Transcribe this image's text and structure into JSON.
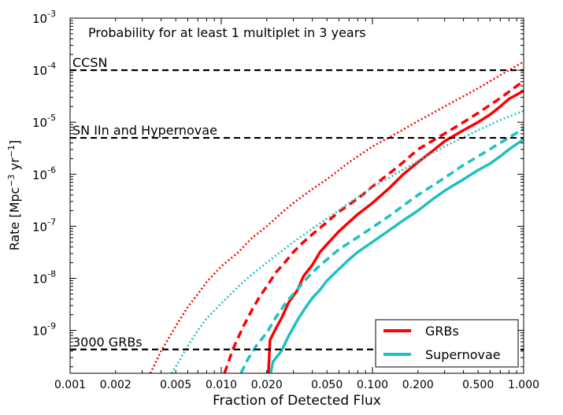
{
  "chart_data": {
    "type": "line",
    "title": "Probability for at least 1 multiplet in 3 years",
    "xlabel": "Fraction of Detected Flux",
    "ylabel": {
      "main": "Rate [Mpc",
      "sup1": "−3",
      "mid": " yr",
      "sup2": "−1",
      "end": "]"
    },
    "x_scale": "log",
    "y_scale": "log",
    "xlim": [
      0.001,
      1.0
    ],
    "ylim": [
      1.5e-10,
      0.001
    ],
    "x_ticks": [
      {
        "v": 0.001,
        "label": "0.001"
      },
      {
        "v": 0.002,
        "label": "0.002"
      },
      {
        "v": 0.005,
        "label": "0.005"
      },
      {
        "v": 0.01,
        "label": "0.010"
      },
      {
        "v": 0.02,
        "label": "0.020"
      },
      {
        "v": 0.05,
        "label": "0.050"
      },
      {
        "v": 0.1,
        "label": "0.100"
      },
      {
        "v": 0.2,
        "label": "0.200"
      },
      {
        "v": 0.5,
        "label": "0.500"
      },
      {
        "v": 1.0,
        "label": "1.000"
      }
    ],
    "y_ticks": [
      {
        "v": 0.001,
        "base": "10",
        "exp": "-3"
      },
      {
        "v": 0.0001,
        "base": "10",
        "exp": "-4"
      },
      {
        "v": 1e-05,
        "base": "10",
        "exp": "-5"
      },
      {
        "v": 1e-06,
        "base": "10",
        "exp": "-6"
      },
      {
        "v": 1e-07,
        "base": "10",
        "exp": "-7"
      },
      {
        "v": 1e-08,
        "base": "10",
        "exp": "-8"
      },
      {
        "v": 1e-09,
        "base": "10",
        "exp": "-9"
      }
    ],
    "reference_lines": [
      {
        "label": "CCSN",
        "y": 0.0001
      },
      {
        "label": "SN IIn and Hypernovae",
        "y": 5e-06
      },
      {
        "label": "3000 GRBs",
        "y": 4.3e-10
      }
    ],
    "legend": {
      "placement": "lower-right",
      "entries": [
        {
          "label": "GRBs",
          "color": "#ff0000"
        },
        {
          "label": "Supernovae",
          "color": "#20c0c0"
        }
      ]
    },
    "series": [
      {
        "group": "GRBs",
        "style": "solid",
        "color": "#ff0000",
        "points": [
          [
            0.0205,
            1.5e-10
          ],
          [
            0.021,
            6.5e-10
          ],
          [
            0.023,
            1.1e-09
          ],
          [
            0.025,
            1.7e-09
          ],
          [
            0.028,
            3.5e-09
          ],
          [
            0.032,
            6e-09
          ],
          [
            0.035,
            1.1e-08
          ],
          [
            0.04,
            1.8e-08
          ],
          [
            0.045,
            3.2e-08
          ],
          [
            0.05,
            4.5e-08
          ],
          [
            0.06,
            8e-08
          ],
          [
            0.07,
            1.2e-07
          ],
          [
            0.08,
            1.7e-07
          ],
          [
            0.1,
            2.8e-07
          ],
          [
            0.13,
            5.5e-07
          ],
          [
            0.16,
            1e-06
          ],
          [
            0.2,
            1.7e-06
          ],
          [
            0.25,
            2.8e-06
          ],
          [
            0.3,
            4.3e-06
          ],
          [
            0.4,
            7e-06
          ],
          [
            0.5,
            1e-05
          ],
          [
            0.6,
            1.4e-05
          ],
          [
            0.7,
            2e-05
          ],
          [
            0.8,
            2.8e-05
          ],
          [
            1.0,
            4e-05
          ]
        ]
      },
      {
        "group": "GRBs",
        "style": "dashed",
        "color": "#ff0000",
        "points": [
          [
            0.0105,
            1.5e-10
          ],
          [
            0.012,
            4.5e-10
          ],
          [
            0.014,
            1.2e-09
          ],
          [
            0.016,
            2.5e-09
          ],
          [
            0.018,
            4.5e-09
          ],
          [
            0.02,
            7e-09
          ],
          [
            0.023,
            1.3e-08
          ],
          [
            0.027,
            2.2e-08
          ],
          [
            0.03,
            3.2e-08
          ],
          [
            0.035,
            5e-08
          ],
          [
            0.04,
            7e-08
          ],
          [
            0.05,
            1.2e-07
          ],
          [
            0.06,
            1.9e-07
          ],
          [
            0.08,
            3.4e-07
          ],
          [
            0.1,
            5.8e-07
          ],
          [
            0.13,
            1.05e-06
          ],
          [
            0.16,
            1.7e-06
          ],
          [
            0.2,
            3e-06
          ],
          [
            0.3,
            6e-06
          ],
          [
            0.4,
            1e-05
          ],
          [
            0.5,
            1.5e-05
          ],
          [
            0.7,
            2.9e-05
          ],
          [
            1.0,
            6.2e-05
          ]
        ]
      },
      {
        "group": "GRBs",
        "style": "dotted",
        "color": "#ff0000",
        "points": [
          [
            0.0034,
            1.5e-10
          ],
          [
            0.004,
            4e-10
          ],
          [
            0.005,
            1.2e-09
          ],
          [
            0.006,
            2.8e-09
          ],
          [
            0.007,
            5e-09
          ],
          [
            0.008,
            8.5e-09
          ],
          [
            0.01,
            1.7e-08
          ],
          [
            0.013,
            3.2e-08
          ],
          [
            0.016,
            6e-08
          ],
          [
            0.02,
            1e-07
          ],
          [
            0.025,
            1.8e-07
          ],
          [
            0.03,
            2.8e-07
          ],
          [
            0.04,
            5.2e-07
          ],
          [
            0.05,
            8e-07
          ],
          [
            0.07,
            1.7e-06
          ],
          [
            0.1,
            3.4e-06
          ],
          [
            0.15,
            6.5e-06
          ],
          [
            0.2,
            1.05e-05
          ],
          [
            0.3,
            2e-05
          ],
          [
            0.5,
            4.5e-05
          ],
          [
            0.7,
            8e-05
          ],
          [
            1.0,
            0.000145
          ]
        ]
      },
      {
        "group": "Supernovae",
        "style": "solid",
        "color": "#20c0c0",
        "points": [
          [
            0.0212,
            1.5e-10
          ],
          [
            0.022,
            2.5e-10
          ],
          [
            0.025,
            4e-10
          ],
          [
            0.028,
            8e-10
          ],
          [
            0.032,
            1.6e-09
          ],
          [
            0.035,
            2.4e-09
          ],
          [
            0.04,
            4.2e-09
          ],
          [
            0.045,
            6e-09
          ],
          [
            0.05,
            9e-09
          ],
          [
            0.06,
            1.5e-08
          ],
          [
            0.07,
            2.3e-08
          ],
          [
            0.08,
            3.2e-08
          ],
          [
            0.1,
            5e-08
          ],
          [
            0.13,
            8.5e-08
          ],
          [
            0.16,
            1.3e-07
          ],
          [
            0.2,
            2e-07
          ],
          [
            0.25,
            3.3e-07
          ],
          [
            0.3,
            4.8e-07
          ],
          [
            0.4,
            8e-07
          ],
          [
            0.5,
            1.2e-06
          ],
          [
            0.6,
            1.6e-06
          ],
          [
            0.7,
            2.2e-06
          ],
          [
            0.8,
            3e-06
          ],
          [
            1.0,
            4.7e-06
          ]
        ]
      },
      {
        "group": "Supernovae",
        "style": "dashed",
        "color": "#20c0c0",
        "points": [
          [
            0.0135,
            1.5e-10
          ],
          [
            0.015,
            2.8e-10
          ],
          [
            0.017,
            5e-10
          ],
          [
            0.02,
            9e-10
          ],
          [
            0.023,
            1.8e-09
          ],
          [
            0.027,
            3.5e-09
          ],
          [
            0.03,
            5e-09
          ],
          [
            0.035,
            8.5e-09
          ],
          [
            0.04,
            1.3e-08
          ],
          [
            0.05,
            2.3e-08
          ],
          [
            0.06,
            3.6e-08
          ],
          [
            0.08,
            6.2e-08
          ],
          [
            0.1,
            9.5e-08
          ],
          [
            0.13,
            1.6e-07
          ],
          [
            0.16,
            2.5e-07
          ],
          [
            0.2,
            4e-07
          ],
          [
            0.3,
            8.5e-07
          ],
          [
            0.4,
            1.5e-06
          ],
          [
            0.5,
            2.2e-06
          ],
          [
            0.7,
            4e-06
          ],
          [
            1.0,
            7.5e-06
          ]
        ]
      },
      {
        "group": "Supernovae",
        "style": "dotted",
        "color": "#20c0c0",
        "points": [
          [
            0.0047,
            1.5e-10
          ],
          [
            0.005,
            2e-10
          ],
          [
            0.006,
            5e-10
          ],
          [
            0.007,
            1e-09
          ],
          [
            0.008,
            1.7e-09
          ],
          [
            0.01,
            3.3e-09
          ],
          [
            0.013,
            7e-09
          ],
          [
            0.016,
            1.2e-08
          ],
          [
            0.02,
            2e-08
          ],
          [
            0.025,
            3.3e-08
          ],
          [
            0.03,
            5e-08
          ],
          [
            0.04,
            9e-08
          ],
          [
            0.05,
            1.4e-07
          ],
          [
            0.07,
            2.8e-07
          ],
          [
            0.1,
            5.6e-07
          ],
          [
            0.15,
            1.1e-06
          ],
          [
            0.2,
            1.8e-06
          ],
          [
            0.3,
            3.4e-06
          ],
          [
            0.5,
            7e-06
          ],
          [
            0.7,
            1.1e-05
          ],
          [
            1.0,
            1.65e-05
          ]
        ]
      }
    ]
  }
}
